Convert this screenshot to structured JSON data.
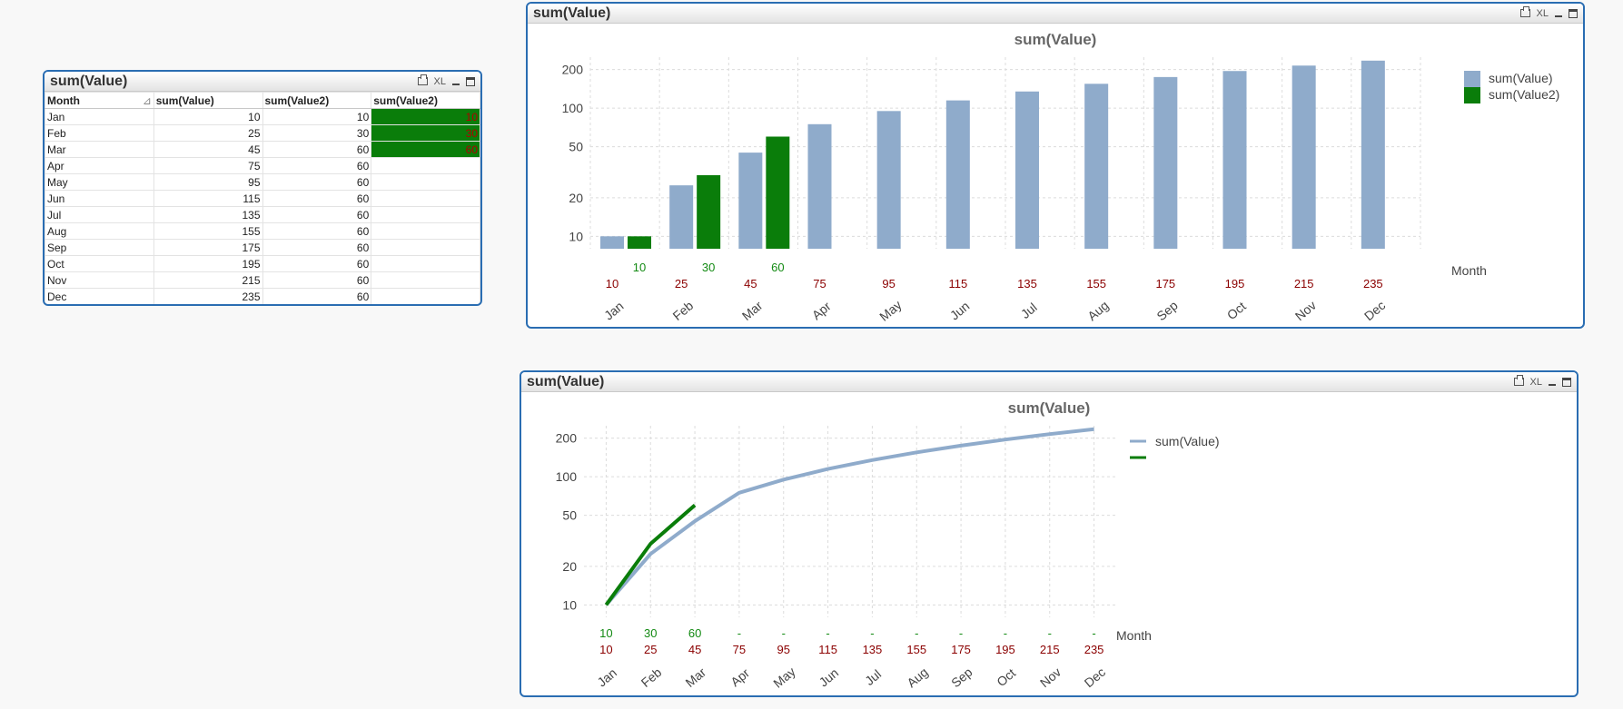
{
  "table_box": {
    "title": "sum(Value)",
    "buttons": {
      "xl": "XL"
    },
    "headers": [
      "Month",
      "sum(Value)",
      "sum(Value2)",
      "sum(Value2)"
    ],
    "rows": [
      [
        "Jan",
        "10",
        "10",
        "10"
      ],
      [
        "Feb",
        "25",
        "30",
        "30"
      ],
      [
        "Mar",
        "45",
        "60",
        "60"
      ],
      [
        "Apr",
        "75",
        "60",
        ""
      ],
      [
        "May",
        "95",
        "60",
        ""
      ],
      [
        "Jun",
        "115",
        "60",
        ""
      ],
      [
        "Jul",
        "135",
        "60",
        ""
      ],
      [
        "Aug",
        "155",
        "60",
        ""
      ],
      [
        "Sep",
        "175",
        "60",
        ""
      ],
      [
        "Oct",
        "195",
        "60",
        ""
      ],
      [
        "Nov",
        "215",
        "60",
        ""
      ],
      [
        "Dec",
        "235",
        "60",
        ""
      ]
    ]
  },
  "bar_box": {
    "title": "sum(Value)",
    "buttons": {
      "xl": "XL"
    }
  },
  "line_box": {
    "title": "sum(Value)",
    "buttons": {
      "xl": "XL"
    }
  },
  "colors": {
    "series1": "#8fabcb",
    "series2": "#0a7d0a",
    "label1": "#8b0000",
    "label2": "#138a13",
    "grid": "#dcdcdc",
    "border": "#2a6db2"
  },
  "chart_data": [
    {
      "type": "bar",
      "title": "sum(Value)",
      "xlabel": "Month",
      "yscale": "log",
      "yticks": [
        10,
        20,
        50,
        100,
        200
      ],
      "ylim": [
        8,
        250
      ],
      "categories": [
        "Jan",
        "Feb",
        "Mar",
        "Apr",
        "May",
        "Jun",
        "Jul",
        "Aug",
        "Sep",
        "Oct",
        "Nov",
        "Dec"
      ],
      "series": [
        {
          "name": "sum(Value)",
          "values": [
            10,
            25,
            45,
            75,
            95,
            115,
            135,
            155,
            175,
            195,
            215,
            235
          ]
        },
        {
          "name": "sum(Value2)",
          "values": [
            10,
            30,
            60,
            null,
            null,
            null,
            null,
            null,
            null,
            null,
            null,
            null
          ]
        }
      ]
    },
    {
      "type": "line",
      "title": "sum(Value)",
      "xlabel": "Month",
      "yscale": "log",
      "yticks": [
        10,
        20,
        50,
        100,
        200
      ],
      "ylim": [
        8,
        250
      ],
      "categories": [
        "Jan",
        "Feb",
        "Mar",
        "Apr",
        "May",
        "Jun",
        "Jul",
        "Aug",
        "Sep",
        "Oct",
        "Nov",
        "Dec"
      ],
      "missing_label": "-",
      "series": [
        {
          "name": "sum(Value)",
          "values": [
            10,
            25,
            45,
            75,
            95,
            115,
            135,
            155,
            175,
            195,
            215,
            235
          ]
        },
        {
          "name": "",
          "values": [
            10,
            30,
            60,
            null,
            null,
            null,
            null,
            null,
            null,
            null,
            null,
            null
          ]
        }
      ]
    }
  ]
}
